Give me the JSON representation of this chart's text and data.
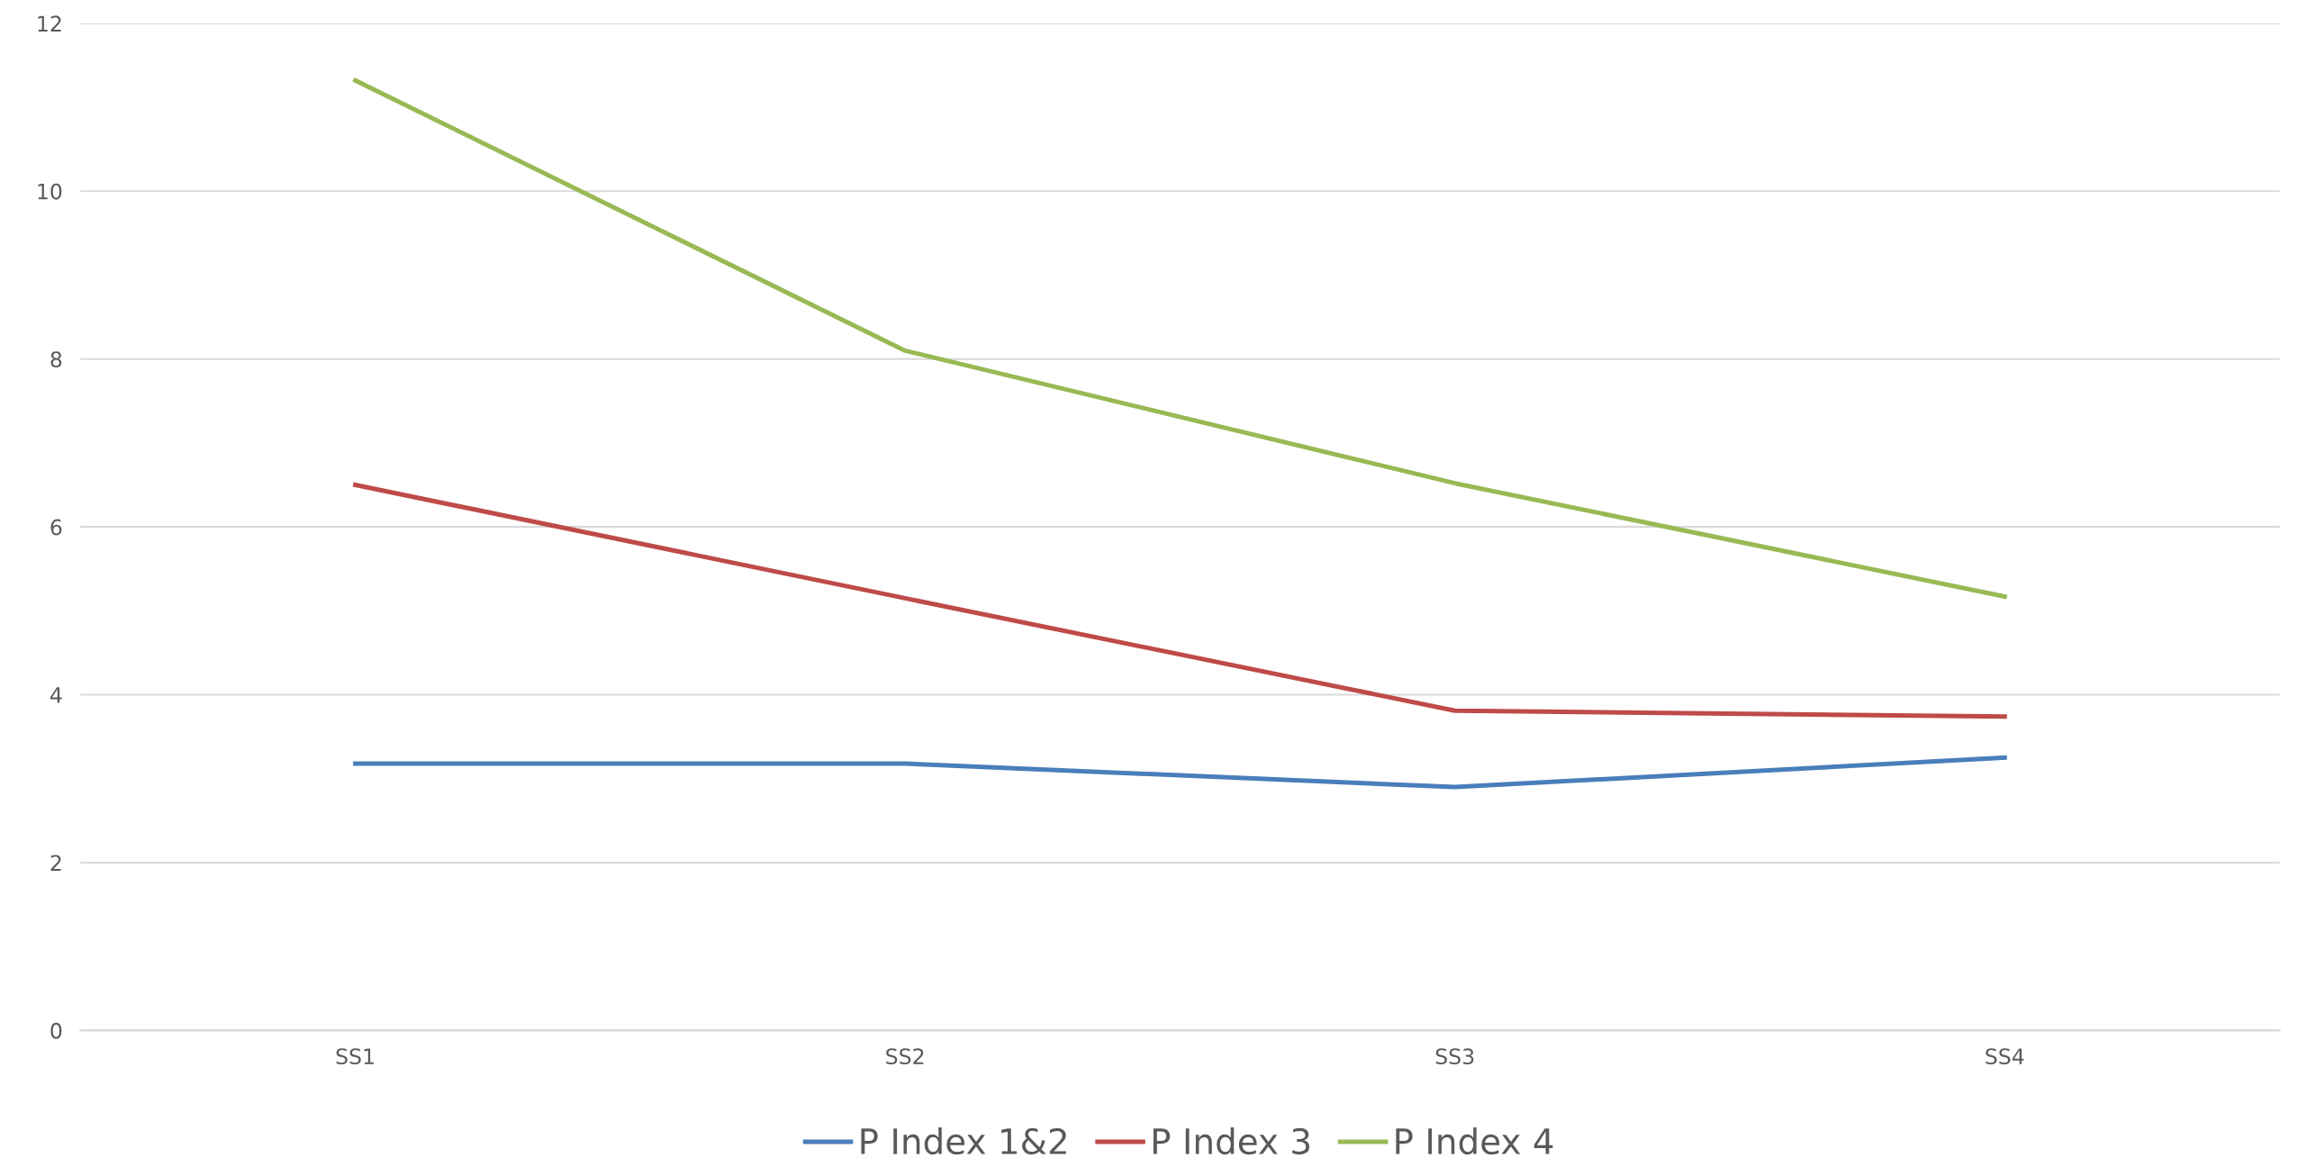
{
  "chart_data": {
    "type": "line",
    "categories": [
      "SS1",
      "SS2",
      "SS3",
      "SS4"
    ],
    "series": [
      {
        "name": "P Index 1&2",
        "color": "#4a7ebb",
        "values": [
          3.18,
          3.18,
          2.9,
          3.25
        ]
      },
      {
        "name": "P Index 3",
        "color": "#be4b48",
        "values": [
          6.5,
          5.15,
          3.81,
          3.74
        ]
      },
      {
        "name": "P Index 4",
        "color": "#98b954",
        "values": [
          11.32,
          8.1,
          6.52,
          5.17
        ]
      }
    ],
    "ylim": [
      0,
      12
    ],
    "yticks": [
      0,
      2,
      4,
      6,
      8,
      10,
      12
    ],
    "grid": "y",
    "legend": "bottom",
    "marker": "none",
    "line_style": "solid"
  }
}
